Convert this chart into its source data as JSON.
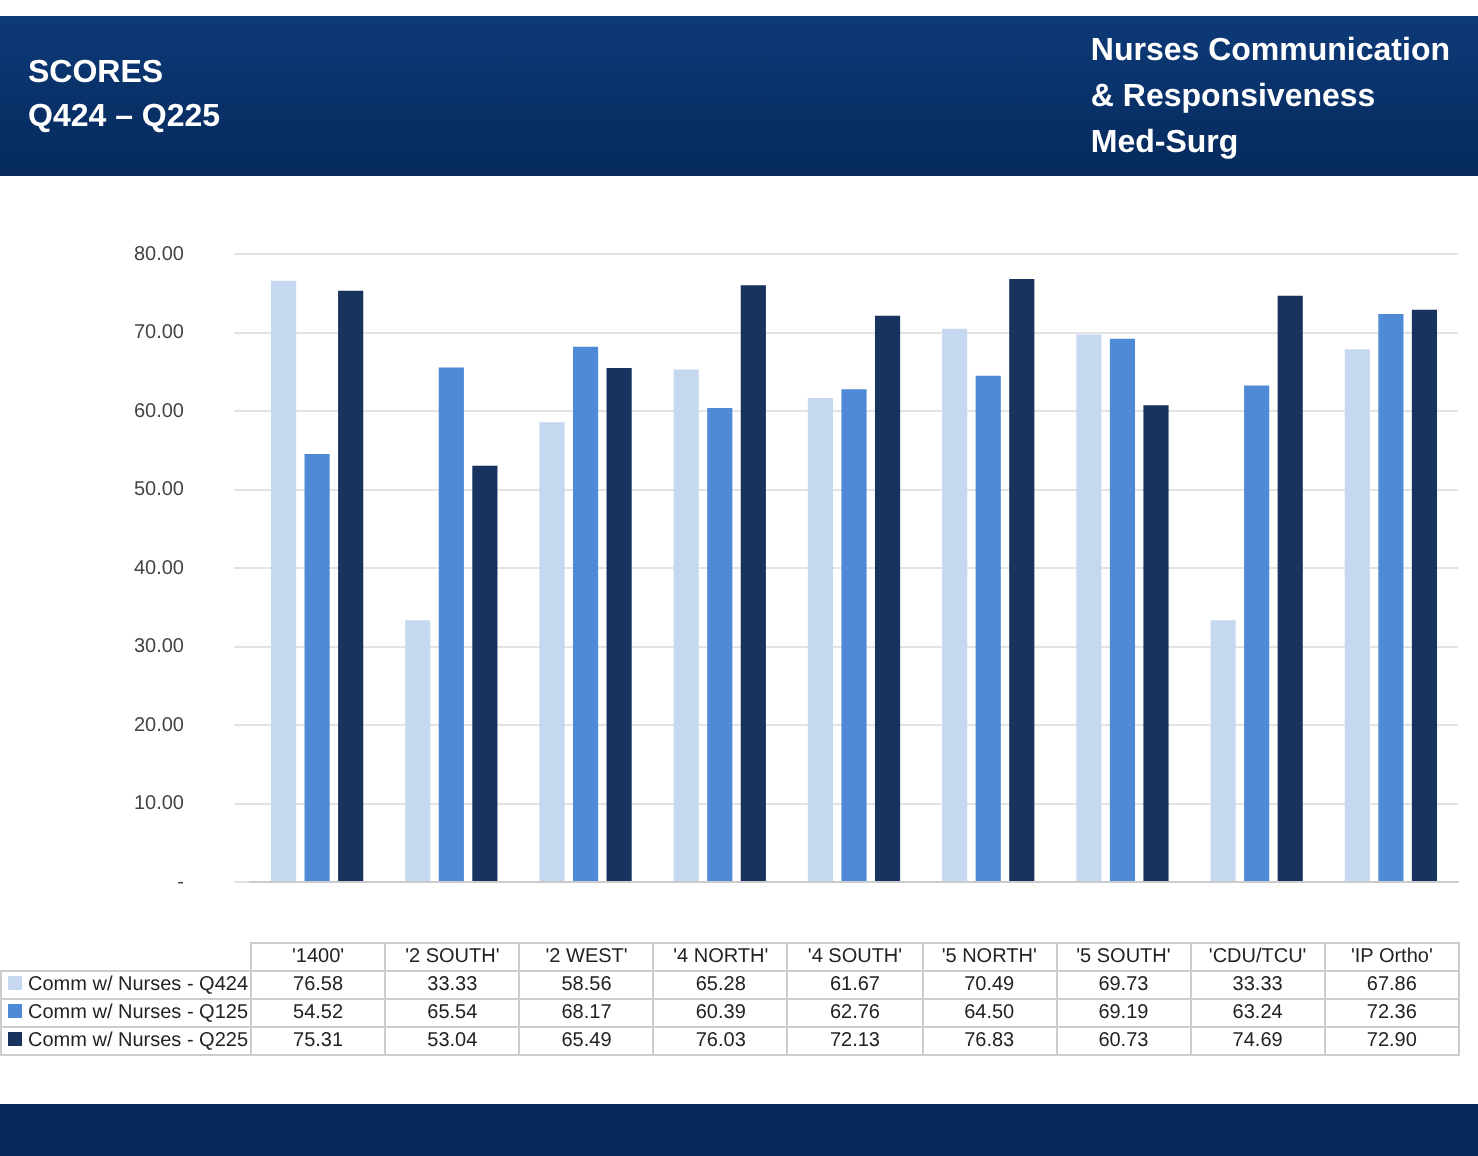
{
  "chart_data": {
    "type": "bar",
    "title": "SCORES\nQ424 – Q225",
    "subtitle": "Nurses Communication\n& Responsiveness\nMed-Surg",
    "categories": [
      "'1400'",
      "'2 SOUTH'",
      "'2 WEST'",
      "'4 NORTH'",
      "'4 SOUTH'",
      "'5 NORTH'",
      "'5 SOUTH'",
      "'CDU/TCU'",
      "'IP Ortho'"
    ],
    "series": [
      {
        "name": "Comm w/ Nurses - Q424",
        "color": "#c5d8ef",
        "values": [
          76.58,
          33.33,
          58.56,
          65.28,
          61.67,
          70.49,
          69.73,
          33.33,
          67.86
        ],
        "value_labels": [
          "76.58",
          "33.33",
          "58.56",
          "65.28",
          "61.67",
          "70.49",
          "69.73",
          "33.33",
          "67.86"
        ]
      },
      {
        "name": "Comm w/ Nurses - Q125",
        "color": "#4f8ad6",
        "values": [
          54.52,
          65.54,
          68.17,
          60.39,
          62.76,
          64.5,
          69.19,
          63.24,
          72.36
        ],
        "value_labels": [
          "54.52",
          "65.54",
          "68.17",
          "60.39",
          "62.76",
          "64.50",
          "69.19",
          "63.24",
          "72.36"
        ]
      },
      {
        "name": "Comm w/ Nurses - Q225",
        "color": "#17335e",
        "values": [
          75.31,
          53.04,
          65.49,
          76.03,
          72.13,
          76.83,
          60.73,
          74.69,
          72.9
        ],
        "value_labels": [
          "75.31",
          "53.04",
          "65.49",
          "76.03",
          "72.13",
          "76.83",
          "60.73",
          "74.69",
          "72.90"
        ]
      }
    ],
    "ylim": [
      0,
      80
    ],
    "yticks": [
      {
        "value": 0,
        "label": "-"
      },
      {
        "value": 10,
        "label": "10.00"
      },
      {
        "value": 20,
        "label": "20.00"
      },
      {
        "value": 30,
        "label": "30.00"
      },
      {
        "value": 40,
        "label": "40.00"
      },
      {
        "value": 50,
        "label": "50.00"
      },
      {
        "value": 60,
        "label": "60.00"
      },
      {
        "value": 70,
        "label": "70.00"
      },
      {
        "value": 80,
        "label": "80.00"
      }
    ],
    "grid": "y",
    "legend": "bottom"
  }
}
